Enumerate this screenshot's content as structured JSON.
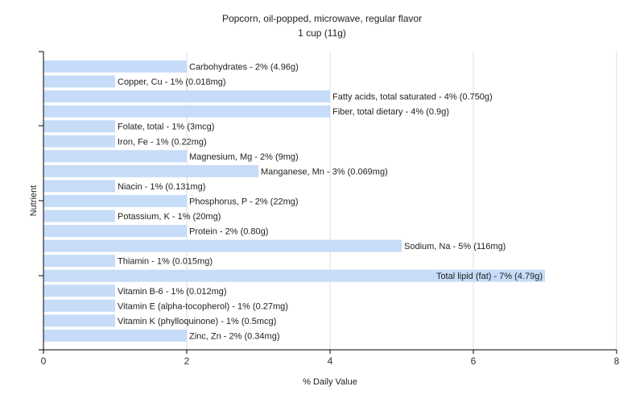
{
  "chart_data": {
    "type": "bar",
    "orientation": "horizontal",
    "title": "Popcorn, oil-popped, microwave, regular flavor",
    "subtitle": "1 cup (11g)",
    "xlabel": "% Daily Value",
    "ylabel": "Nutrient",
    "xlim": [
      0,
      8
    ],
    "xticks": [
      "0",
      "2",
      "4",
      "6",
      "8"
    ],
    "grid": true,
    "colors": {
      "bar": "#c6dcf8",
      "background": "#ffffff",
      "grid": "#dddddd",
      "axis": "#000000"
    },
    "categories": [
      "Carbohydrates",
      "Copper, Cu",
      "Fatty acids, total saturated",
      "Fiber, total dietary",
      "Folate, total",
      "Iron, Fe",
      "Magnesium, Mg",
      "Manganese, Mn",
      "Niacin",
      "Phosphorus, P",
      "Potassium, K",
      "Protein",
      "Sodium, Na",
      "Thiamin",
      "Total lipid (fat)",
      "Vitamin B-6",
      "Vitamin E (alpha-tocopherol)",
      "Vitamin K (phylloquinone)",
      "Zinc, Zn"
    ],
    "values": [
      2,
      1,
      4,
      4,
      1,
      1,
      2,
      3,
      1,
      2,
      1,
      2,
      5,
      1,
      7,
      1,
      1,
      1,
      2
    ],
    "labels": [
      "Carbohydrates - 2% (4.96g)",
      "Copper, Cu - 1% (0.018mg)",
      "Fatty acids, total saturated - 4% (0.750g)",
      "Fiber, total dietary - 4% (0.9g)",
      "Folate, total - 1% (3mcg)",
      "Iron, Fe - 1% (0.22mg)",
      "Magnesium, Mg - 2% (9mg)",
      "Manganese, Mn - 3% (0.069mg)",
      "Niacin - 1% (0.131mg)",
      "Phosphorus, P - 2% (22mg)",
      "Potassium, K - 1% (20mg)",
      "Protein - 2% (0.80g)",
      "Sodium, Na - 5% (116mg)",
      "Thiamin - 1% (0.015mg)",
      "Total lipid (fat) - 7% (4.79g)",
      "Vitamin B-6 - 1% (0.012mg)",
      "Vitamin E (alpha-tocopherol) - 1% (0.27mg)",
      "Vitamin K (phylloquinone) - 1% (0.5mcg)",
      "Zinc, Zn - 2% (0.34mg)"
    ]
  }
}
